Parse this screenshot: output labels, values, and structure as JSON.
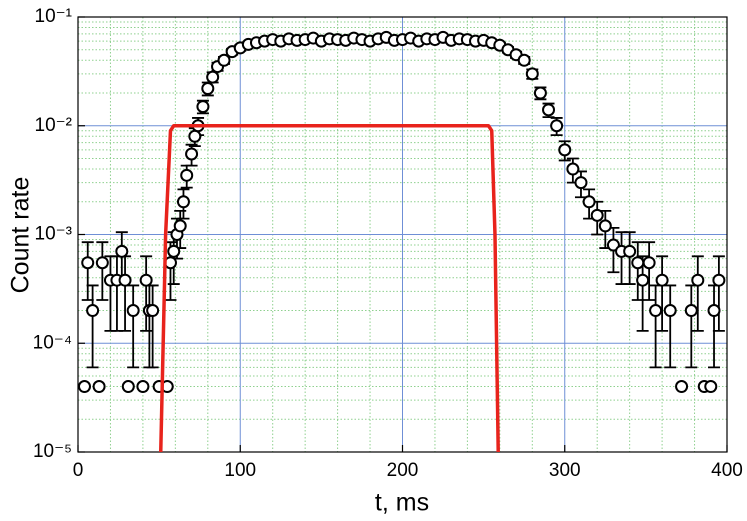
{
  "chart_data": {
    "type": "scatter",
    "xlabel": "t, ms",
    "ylabel": "Count rate",
    "xlim": [
      0,
      400
    ],
    "xticks": [
      0,
      100,
      200,
      300,
      400
    ],
    "xminorticks": [
      20,
      40,
      60,
      80,
      120,
      140,
      160,
      180,
      220,
      240,
      260,
      280,
      320,
      340,
      360,
      380
    ],
    "ylim": [
      1e-05,
      0.1
    ],
    "yscale": "log",
    "yticks": [
      {
        "value": 1e-05,
        "label": "10⁻⁵"
      },
      {
        "value": 0.0001,
        "label": "10⁻⁴"
      },
      {
        "value": 0.001,
        "label": "10⁻³"
      },
      {
        "value": 0.01,
        "label": "10⁻²"
      },
      {
        "value": 0.1,
        "label": "10⁻¹"
      }
    ],
    "yminorticks": [
      2e-05,
      3e-05,
      4e-05,
      5e-05,
      6e-05,
      7e-05,
      8e-05,
      9e-05,
      0.0002,
      0.0003,
      0.0004,
      0.0005,
      0.0006,
      0.0007,
      0.0008,
      0.0009,
      0.002,
      0.003,
      0.004,
      0.005,
      0.006,
      0.007,
      0.008,
      0.009,
      0.02,
      0.03,
      0.04,
      0.05,
      0.06,
      0.07,
      0.08,
      0.09
    ],
    "grid": true,
    "major_grid_color": "#6f8fd6",
    "minor_grid_color": "#8fd08f",
    "series": [
      {
        "type": "scatter",
        "color": "#000000",
        "x": [
          4,
          6,
          9,
          13,
          15,
          20,
          24,
          27,
          29,
          31,
          34,
          40,
          42,
          44,
          46,
          50,
          55,
          57,
          59,
          61,
          63,
          65,
          67,
          70,
          72,
          74,
          77,
          80,
          83,
          86,
          90,
          95,
          100,
          105,
          110,
          115,
          120,
          125,
          130,
          135,
          140,
          145,
          150,
          155,
          160,
          165,
          170,
          175,
          180,
          185,
          190,
          195,
          200,
          205,
          210,
          215,
          220,
          225,
          230,
          235,
          240,
          245,
          250,
          255,
          260,
          265,
          270,
          275,
          280,
          285,
          290,
          295,
          300,
          305,
          310,
          315,
          320,
          325,
          330,
          335,
          340,
          345,
          348,
          352,
          356,
          360,
          365,
          372,
          378,
          382,
          386,
          390,
          392,
          395
        ],
        "values": [
          4e-05,
          0.00055,
          0.0002,
          4e-05,
          0.00055,
          0.00038,
          0.00038,
          0.0007,
          0.00038,
          4e-05,
          0.0002,
          4e-05,
          0.00038,
          0.0002,
          0.0002,
          4e-05,
          4e-05,
          0.00055,
          0.0007,
          0.001,
          0.0012,
          0.002,
          0.0035,
          0.0055,
          0.008,
          0.01,
          0.015,
          0.022,
          0.028,
          0.035,
          0.04,
          0.048,
          0.052,
          0.056,
          0.058,
          0.06,
          0.062,
          0.06,
          0.063,
          0.061,
          0.062,
          0.064,
          0.06,
          0.063,
          0.062,
          0.061,
          0.064,
          0.062,
          0.06,
          0.063,
          0.065,
          0.061,
          0.062,
          0.064,
          0.06,
          0.063,
          0.062,
          0.065,
          0.061,
          0.063,
          0.062,
          0.06,
          0.061,
          0.058,
          0.055,
          0.05,
          0.045,
          0.04,
          0.03,
          0.02,
          0.014,
          0.01,
          0.006,
          0.004,
          0.003,
          0.002,
          0.0015,
          0.0012,
          0.0008,
          0.0007,
          0.0007,
          0.00055,
          0.00038,
          0.00055,
          0.0002,
          0.00038,
          0.0002,
          4e-05,
          0.0002,
          0.00038,
          4e-05,
          4e-05,
          0.0002,
          0.00038
        ],
        "errors": [
          null,
          0.0003,
          0.00014,
          null,
          0.0003,
          0.00025,
          0.00025,
          0.00035,
          0.00025,
          null,
          0.00014,
          null,
          0.00025,
          0.00014,
          0.00014,
          null,
          null,
          0.0003,
          0.00035,
          0.0004,
          0.00045,
          0.0006,
          0.0008,
          0.0012,
          0.0015,
          0.0018,
          0.002,
          0.003,
          0.003,
          0.003,
          0.003,
          0.003,
          0.003,
          0.003,
          0.003,
          0.003,
          0.003,
          0.003,
          0.003,
          0.003,
          0.003,
          0.003,
          0.003,
          0.003,
          0.003,
          0.003,
          0.003,
          0.003,
          0.003,
          0.003,
          0.003,
          0.003,
          0.003,
          0.003,
          0.003,
          0.003,
          0.003,
          0.003,
          0.003,
          0.003,
          0.003,
          0.003,
          0.003,
          0.003,
          0.003,
          0.003,
          0.003,
          0.003,
          0.003,
          0.0025,
          0.002,
          0.0018,
          0.0012,
          0.001,
          0.0008,
          0.0006,
          0.0005,
          0.00045,
          0.00035,
          0.00035,
          0.00035,
          0.0003,
          0.00025,
          0.0003,
          0.00014,
          0.00025,
          0.00014,
          null,
          0.00014,
          0.00025,
          null,
          null,
          0.00014,
          0.00025
        ]
      },
      {
        "type": "line",
        "color": "#e8231c",
        "x": [
          51,
          54,
          57,
          59,
          253,
          255,
          257,
          259
        ],
        "values": [
          1e-05,
          0.001,
          0.009,
          0.01,
          0.01,
          0.009,
          0.001,
          1e-05
        ]
      }
    ]
  }
}
